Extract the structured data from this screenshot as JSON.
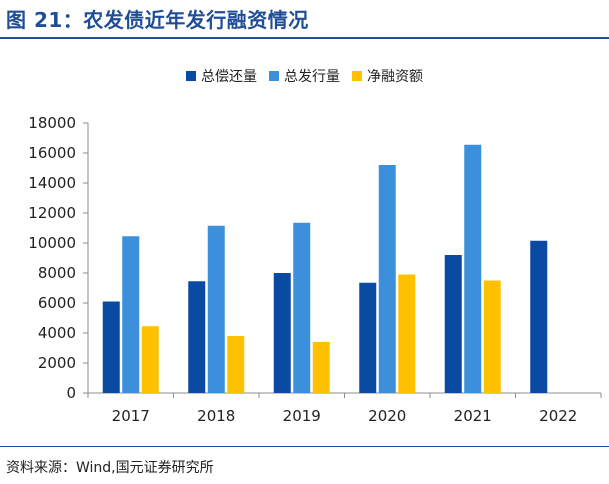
{
  "header": {
    "title": "图 21：农发债近年发行融资情况"
  },
  "footer": {
    "source": "资料来源：Wind,国元证券研究所"
  },
  "chart_data": {
    "type": "bar",
    "categories": [
      "2017",
      "2018",
      "2019",
      "2020",
      "2021",
      "2022"
    ],
    "series": [
      {
        "name": "总偿还量",
        "color": "#0a4aa3",
        "values": [
          6100,
          7450,
          8000,
          7350,
          9200,
          10150
        ]
      },
      {
        "name": "总发行量",
        "color": "#3c8fdb",
        "values": [
          10450,
          11150,
          11350,
          15200,
          16550,
          null
        ]
      },
      {
        "name": "净融资额",
        "color": "#ffc000",
        "values": [
          4450,
          3800,
          3400,
          7900,
          7500,
          null
        ]
      }
    ],
    "ylim": [
      0,
      18000
    ],
    "yticks": [
      "0",
      "2000",
      "4000",
      "6000",
      "8000",
      "10000",
      "12000",
      "14000",
      "16000",
      "18000"
    ],
    "grid": false,
    "legend": "top"
  }
}
